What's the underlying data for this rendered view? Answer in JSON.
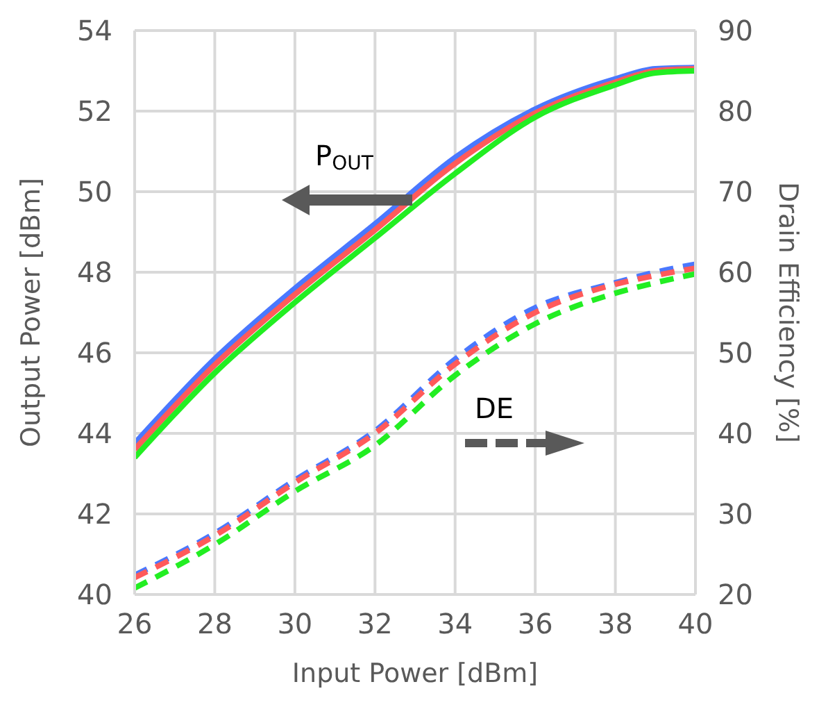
{
  "chart_data": {
    "type": "line",
    "xlabel": "Input Power [dBm]",
    "ylabel": "Output Power [dBm]",
    "y2label": "Drain Efficiency [%]",
    "x": [
      26,
      28,
      30,
      32,
      34,
      36,
      38,
      39,
      40
    ],
    "series": [
      {
        "color": "#4a78ff",
        "line_style": "solid",
        "values": [
          43.75,
          45.85,
          47.6,
          49.2,
          50.85,
          52.05,
          52.8,
          53.05,
          53.08
        ]
      },
      {
        "color": "#ff5a5a",
        "line_style": "solid",
        "values": [
          43.6,
          45.7,
          47.45,
          49.05,
          50.7,
          51.95,
          52.72,
          53.0,
          53.05
        ]
      },
      {
        "color": "#22ee22",
        "line_style": "solid",
        "values": [
          43.4,
          45.5,
          47.25,
          48.85,
          50.45,
          51.85,
          52.65,
          52.95,
          53.0
        ]
      },
      {
        "color": "#4a78ff",
        "line_style": "dashed",
        "axis": "y2",
        "values": [
          22.4,
          27.6,
          34.2,
          40.3,
          49.2,
          55.6,
          58.7,
          60.0,
          61.0
        ]
      },
      {
        "color": "#ff5a5a",
        "line_style": "dashed",
        "axis": "y2",
        "values": [
          22.1,
          27.3,
          33.9,
          40.0,
          48.6,
          55.0,
          58.5,
          59.6,
          60.5
        ]
      },
      {
        "color": "#22ee22",
        "line_style": "dashed",
        "axis": "y2",
        "values": [
          20.8,
          26.2,
          32.8,
          38.5,
          47.2,
          53.6,
          57.4,
          58.7,
          59.8
        ]
      }
    ],
    "xlim": [
      26,
      40
    ],
    "xticks": [
      26,
      28,
      30,
      32,
      34,
      36,
      38,
      40
    ],
    "ylim": [
      40,
      54
    ],
    "yticks": [
      40,
      42,
      44,
      46,
      48,
      50,
      52,
      54
    ],
    "y2lim": [
      20,
      90
    ],
    "y2ticks": [
      20,
      30,
      40,
      50,
      60,
      70,
      80,
      90
    ],
    "grid": true,
    "annotations": [
      "P$_{OUT}$",
      "DE"
    ]
  }
}
